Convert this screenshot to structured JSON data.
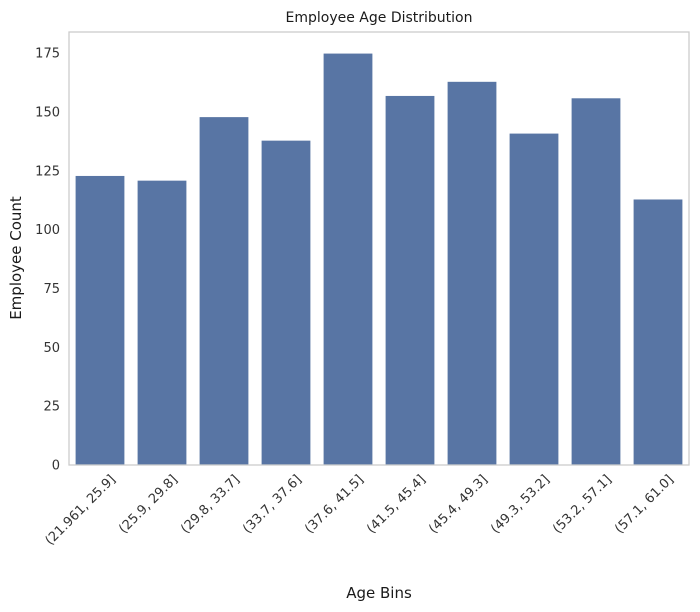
{
  "chart_data": {
    "type": "bar",
    "title": "Employee Age Distribution",
    "xlabel": "Age Bins",
    "ylabel": "Employee Count",
    "categories": [
      "(21.961, 25.9]",
      "(25.9, 29.8]",
      "(29.8, 33.7]",
      "(33.7, 37.6]",
      "(37.6, 41.5]",
      "(41.5, 45.4]",
      "(45.4, 49.3]",
      "(49.3, 53.2]",
      "(53.2, 57.1]",
      "(57.1, 61.0]"
    ],
    "values": [
      123,
      121,
      148,
      138,
      175,
      157,
      163,
      141,
      156,
      113
    ],
    "ylim": [
      0,
      184
    ],
    "yticks": [
      0,
      25,
      50,
      75,
      100,
      125,
      150,
      175
    ],
    "grid": false,
    "bar_color": "#5875a4",
    "frame_color": "#cccccc"
  }
}
